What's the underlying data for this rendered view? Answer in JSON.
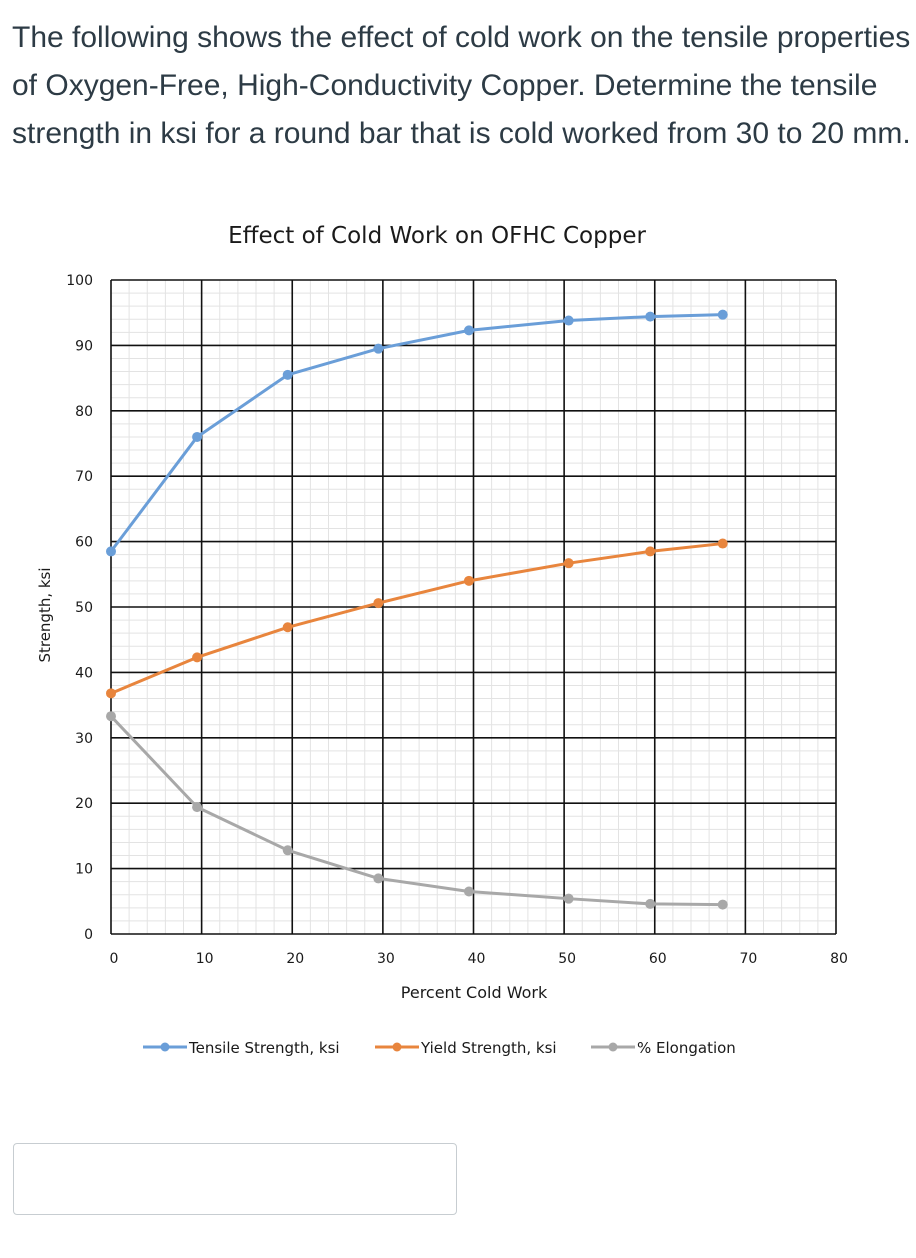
{
  "question": {
    "text": "The following shows the effect of cold work on the tensile properties of Oxygen-Free, High-Conductivity Copper. Determine the tensile strength in ksi for a round bar that is cold worked from 30 to 20 mm."
  },
  "answer": {
    "value": "",
    "placeholder": ""
  },
  "chart_data": {
    "type": "line",
    "title": "Effect of Cold Work on OFHC Copper",
    "xlabel": "Percent Cold Work",
    "ylabel": "Strength, ksi",
    "xlim": [
      0,
      80
    ],
    "ylim": [
      0,
      100
    ],
    "xticks": [
      0,
      10,
      20,
      30,
      40,
      50,
      60,
      70,
      80
    ],
    "yticks": [
      0,
      10,
      20,
      30,
      40,
      50,
      60,
      70,
      80,
      90,
      100
    ],
    "grid": true,
    "legend_position": "bottom",
    "series": [
      {
        "name": "Tensile Strength, ksi",
        "color": "#6a9ed8",
        "x": [
          0,
          9.5,
          19.5,
          29.5,
          39.5,
          50.5,
          59.5,
          67.5
        ],
        "y": [
          58.5,
          76,
          85.5,
          89.5,
          92.3,
          93.8,
          94.4,
          94.7
        ]
      },
      {
        "name": "Yield Strength, ksi",
        "color": "#e8853d",
        "x": [
          0,
          9.5,
          19.5,
          29.5,
          39.5,
          50.5,
          59.5,
          67.5
        ],
        "y": [
          36.8,
          42.3,
          46.9,
          50.6,
          54,
          56.7,
          58.5,
          59.7
        ]
      },
      {
        "name": "% Elongation",
        "color": "#a8a8a8",
        "x": [
          0,
          9.5,
          19.5,
          29.5,
          39.5,
          50.5,
          59.5,
          67.5
        ],
        "y": [
          33.3,
          19.4,
          12.8,
          8.5,
          6.5,
          5.4,
          4.6,
          4.5
        ]
      }
    ]
  }
}
